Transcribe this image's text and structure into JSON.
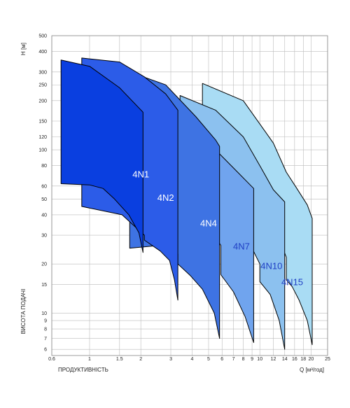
{
  "chart_data": {
    "type": "area",
    "title": "",
    "xlabel": "Q [м³/год]",
    "xlabel_left": "ПРОДУКТИВНІСТЬ",
    "ylabel": "H [м]",
    "ylabel_side": "ВИСОТА ПОДАЧІ",
    "xscale": "log",
    "yscale": "log",
    "xlim": [
      0.6,
      25
    ],
    "ylim": [
      5.5,
      500
    ],
    "grid": true,
    "x_ticks": [
      0.6,
      1,
      1.5,
      2,
      3,
      4,
      5,
      6,
      7,
      8,
      9,
      10,
      12,
      14,
      16,
      18,
      20,
      25
    ],
    "y_ticks": [
      6,
      7,
      8,
      9,
      10,
      15,
      20,
      30,
      40,
      50,
      60,
      80,
      100,
      120,
      150,
      200,
      250,
      300,
      400,
      500
    ],
    "series": [
      {
        "name": "4N15",
        "color": "#a9dcf4",
        "label_at": [
          15.5,
          14.8
        ],
        "boundary": [
          [
            4.6,
            255
          ],
          [
            8,
            200
          ],
          [
            12,
            110
          ],
          [
            14.3,
            73
          ],
          [
            16.5,
            58
          ],
          [
            19,
            46
          ],
          [
            20.3,
            38
          ],
          [
            20.3,
            6.4
          ],
          [
            19,
            9
          ],
          [
            17,
            12
          ],
          [
            15.5,
            14.5
          ],
          [
            14.3,
            16
          ],
          [
            14.3,
            22
          ],
          [
            12,
            35
          ],
          [
            8,
            80
          ],
          [
            4.6,
            180
          ]
        ]
      },
      {
        "name": "4N10",
        "color": "#8cc1ef",
        "label_at": [
          11.7,
          18.6
        ],
        "boundary": [
          [
            3.4,
            215
          ],
          [
            5.5,
            175
          ],
          [
            8,
            120
          ],
          [
            10,
            80
          ],
          [
            12,
            57
          ],
          [
            14,
            48
          ],
          [
            14,
            6
          ],
          [
            13,
            9
          ],
          [
            11.5,
            13
          ],
          [
            10,
            15.6
          ],
          [
            10,
            20
          ],
          [
            8,
            32
          ],
          [
            5.8,
            60
          ],
          [
            3.4,
            120
          ]
        ]
      },
      {
        "name": "4N7",
        "color": "#70a4ee",
        "label_at": [
          7.8,
          24.5
        ],
        "boundary": [
          [
            2.6,
            195
          ],
          [
            4.1,
            140
          ],
          [
            5.5,
            100
          ],
          [
            7.5,
            72
          ],
          [
            9.2,
            58
          ],
          [
            9.2,
            6.6
          ],
          [
            8.2,
            9.5
          ],
          [
            7,
            13.5
          ],
          [
            5.9,
            17.2
          ],
          [
            5.9,
            26
          ],
          [
            4.5,
            40
          ],
          [
            2.6,
            72
          ]
        ]
      },
      {
        "name": "4N4",
        "color": "#3e73e3",
        "label_at": [
          5.0,
          34.0
        ],
        "boundary": [
          [
            1.72,
            300
          ],
          [
            2.8,
            250
          ],
          [
            4.2,
            160
          ],
          [
            5.5,
            115
          ],
          [
            5.8,
            105
          ],
          [
            5.8,
            7
          ],
          [
            5.4,
            10
          ],
          [
            4.6,
            14
          ],
          [
            3.9,
            17
          ],
          [
            3.3,
            20
          ],
          [
            3.3,
            23
          ],
          [
            2.6,
            26
          ],
          [
            1.72,
            25
          ]
        ]
      },
      {
        "name": "4N2",
        "color": "#2c5ce8",
        "label_at": [
          2.8,
          48.8
        ],
        "boundary": [
          [
            0.9,
            365
          ],
          [
            1.5,
            345
          ],
          [
            2.1,
            280
          ],
          [
            2.8,
            220
          ],
          [
            3.3,
            175
          ],
          [
            3.3,
            12
          ],
          [
            3.15,
            16
          ],
          [
            2.95,
            21
          ],
          [
            2.6,
            24
          ],
          [
            2.1,
            28
          ],
          [
            2.1,
            30
          ],
          [
            1.55,
            40
          ],
          [
            0.9,
            45
          ]
        ]
      },
      {
        "name": "4N1",
        "color": "#0a3fe0",
        "label_at": [
          2.0,
          67.7
        ],
        "boundary": [
          [
            0.68,
            355
          ],
          [
            1.0,
            325
          ],
          [
            1.5,
            240
          ],
          [
            2.06,
            170
          ],
          [
            2.06,
            23.5
          ],
          [
            1.95,
            31
          ],
          [
            1.7,
            40
          ],
          [
            1.4,
            50
          ],
          [
            1.2,
            58
          ],
          [
            1.0,
            61
          ],
          [
            0.68,
            62
          ]
        ]
      }
    ]
  }
}
